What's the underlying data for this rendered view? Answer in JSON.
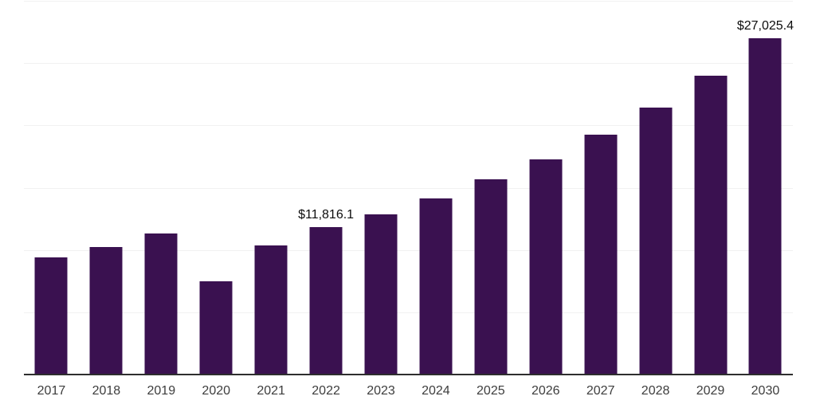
{
  "chart": {
    "background_color": "#ffffff",
    "bar_color": "#3A1150",
    "gridline_color": "#f1f1f1",
    "axis_line_color": "#2e2e2e",
    "data_label_color": "#0d0d0d",
    "tick_label_color": "#3d3d3d"
  },
  "chart_data": {
    "type": "bar",
    "title": "",
    "xlabel": "",
    "ylabel": "",
    "categories": [
      "2017",
      "2018",
      "2019",
      "2020",
      "2021",
      "2022",
      "2023",
      "2024",
      "2025",
      "2026",
      "2027",
      "2028",
      "2029",
      "2030"
    ],
    "values": [
      9430,
      10240,
      11300,
      7510,
      10350,
      11816.1,
      12870,
      14150,
      15700,
      17300,
      19270,
      21440,
      24010,
      27025.4
    ],
    "data_labels": {
      "2022": "$11,816.1",
      "2030": "$27,025.4"
    },
    "ylim": [
      0,
      30000
    ],
    "gridline_step": 5000,
    "grid": "horizontal",
    "legend": "none",
    "y_tick_labels_shown": false
  }
}
